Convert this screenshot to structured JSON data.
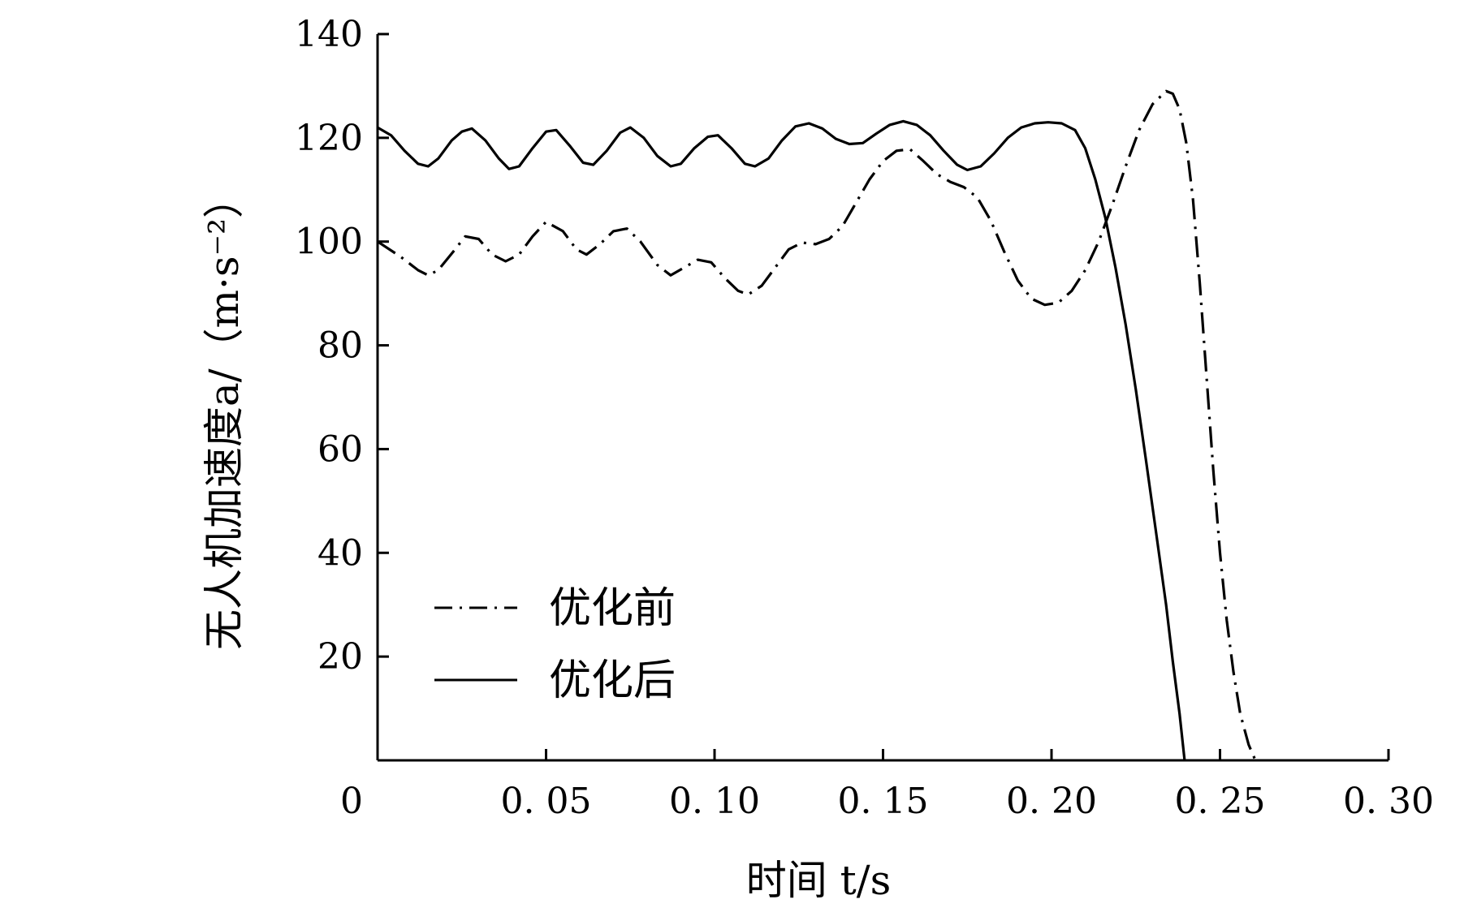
{
  "chart_data": {
    "type": "line",
    "title": "",
    "xlabel": "时间 t/s",
    "ylabel": "无人机加速度a/（m·s⁻²）",
    "xlim": [
      0,
      0.3
    ],
    "ylim": [
      0,
      140
    ],
    "x_ticks": [
      0,
      0.05,
      0.1,
      0.15,
      0.2,
      0.25,
      0.3
    ],
    "x_tick_labels": [
      "0",
      "0. 05",
      "0. 10",
      "0. 15",
      "0. 20",
      "0. 25",
      "0. 30"
    ],
    "y_ticks": [
      20,
      40,
      60,
      80,
      100,
      120,
      140
    ],
    "y_tick_labels": [
      "20",
      "40",
      "60",
      "80",
      "100",
      "120",
      "140"
    ],
    "grid": false,
    "legend_position": "bottom-left",
    "series": [
      {
        "name": "优化前",
        "line_style": "dash-dot",
        "color": "#000000",
        "points": [
          [
            0.0,
            100
          ],
          [
            0.007,
            97
          ],
          [
            0.012,
            94.5
          ],
          [
            0.015,
            93.5
          ],
          [
            0.018,
            94.5
          ],
          [
            0.023,
            98.5
          ],
          [
            0.026,
            101
          ],
          [
            0.03,
            100.5
          ],
          [
            0.034,
            97.5
          ],
          [
            0.038,
            96.2
          ],
          [
            0.042,
            97.5
          ],
          [
            0.046,
            101
          ],
          [
            0.05,
            103.8
          ],
          [
            0.055,
            102
          ],
          [
            0.059,
            98.5
          ],
          [
            0.062,
            97.5
          ],
          [
            0.066,
            99.5
          ],
          [
            0.07,
            102
          ],
          [
            0.074,
            102.5
          ],
          [
            0.078,
            100
          ],
          [
            0.083,
            95.5
          ],
          [
            0.087,
            93.5
          ],
          [
            0.091,
            95
          ],
          [
            0.095,
            96.5
          ],
          [
            0.099,
            96
          ],
          [
            0.103,
            93
          ],
          [
            0.107,
            90.5
          ],
          [
            0.11,
            89.8
          ],
          [
            0.114,
            91.5
          ],
          [
            0.118,
            95
          ],
          [
            0.122,
            98.5
          ],
          [
            0.126,
            99.8
          ],
          [
            0.13,
            99.5
          ],
          [
            0.134,
            100.5
          ],
          [
            0.138,
            103
          ],
          [
            0.142,
            107.5
          ],
          [
            0.146,
            112
          ],
          [
            0.15,
            115.5
          ],
          [
            0.154,
            117.5
          ],
          [
            0.158,
            117.8
          ],
          [
            0.162,
            115.5
          ],
          [
            0.166,
            113
          ],
          [
            0.17,
            111.5
          ],
          [
            0.174,
            110.5
          ],
          [
            0.178,
            108.5
          ],
          [
            0.182,
            104
          ],
          [
            0.186,
            98
          ],
          [
            0.19,
            92.5
          ],
          [
            0.194,
            89
          ],
          [
            0.198,
            87.8
          ],
          [
            0.202,
            88.2
          ],
          [
            0.206,
            90.5
          ],
          [
            0.21,
            94.5
          ],
          [
            0.214,
            100
          ],
          [
            0.218,
            107
          ],
          [
            0.222,
            114.5
          ],
          [
            0.226,
            121.5
          ],
          [
            0.23,
            126.5
          ],
          [
            0.234,
            129
          ],
          [
            0.236,
            128.5
          ],
          [
            0.238,
            125.5
          ],
          [
            0.24,
            119
          ],
          [
            0.242,
            108
          ],
          [
            0.244,
            92
          ],
          [
            0.246,
            74
          ],
          [
            0.248,
            56
          ],
          [
            0.25,
            40
          ],
          [
            0.252,
            27
          ],
          [
            0.254,
            17
          ],
          [
            0.256,
            9
          ],
          [
            0.2585,
            3
          ],
          [
            0.2605,
            0
          ]
        ]
      },
      {
        "name": "优化后",
        "line_style": "solid",
        "color": "#000000",
        "points": [
          [
            0.0,
            122
          ],
          [
            0.004,
            120.5
          ],
          [
            0.008,
            117.5
          ],
          [
            0.012,
            115
          ],
          [
            0.015,
            114.5
          ],
          [
            0.018,
            116
          ],
          [
            0.022,
            119.5
          ],
          [
            0.025,
            121.2
          ],
          [
            0.028,
            121.8
          ],
          [
            0.032,
            119.5
          ],
          [
            0.036,
            116
          ],
          [
            0.039,
            114
          ],
          [
            0.042,
            114.5
          ],
          [
            0.046,
            118
          ],
          [
            0.05,
            121.2
          ],
          [
            0.053,
            121.5
          ],
          [
            0.057,
            118.5
          ],
          [
            0.061,
            115.2
          ],
          [
            0.064,
            114.8
          ],
          [
            0.068,
            117.5
          ],
          [
            0.072,
            121
          ],
          [
            0.075,
            122
          ],
          [
            0.079,
            120
          ],
          [
            0.083,
            116.5
          ],
          [
            0.087,
            114.5
          ],
          [
            0.09,
            115
          ],
          [
            0.094,
            118
          ],
          [
            0.098,
            120.2
          ],
          [
            0.101,
            120.5
          ],
          [
            0.105,
            118
          ],
          [
            0.109,
            115
          ],
          [
            0.112,
            114.5
          ],
          [
            0.116,
            116
          ],
          [
            0.12,
            119.5
          ],
          [
            0.124,
            122.2
          ],
          [
            0.128,
            122.8
          ],
          [
            0.132,
            121.8
          ],
          [
            0.136,
            119.8
          ],
          [
            0.14,
            118.8
          ],
          [
            0.144,
            119
          ],
          [
            0.148,
            120.8
          ],
          [
            0.152,
            122.5
          ],
          [
            0.156,
            123.2
          ],
          [
            0.16,
            122.5
          ],
          [
            0.164,
            120.5
          ],
          [
            0.168,
            117.5
          ],
          [
            0.172,
            114.8
          ],
          [
            0.175,
            113.8
          ],
          [
            0.179,
            114.5
          ],
          [
            0.183,
            117
          ],
          [
            0.187,
            120
          ],
          [
            0.191,
            122
          ],
          [
            0.195,
            122.8
          ],
          [
            0.199,
            123
          ],
          [
            0.203,
            122.8
          ],
          [
            0.207,
            121.5
          ],
          [
            0.21,
            118
          ],
          [
            0.213,
            112
          ],
          [
            0.216,
            104.5
          ],
          [
            0.219,
            95
          ],
          [
            0.222,
            84
          ],
          [
            0.225,
            71.5
          ],
          [
            0.228,
            58
          ],
          [
            0.231,
            44
          ],
          [
            0.234,
            30
          ],
          [
            0.236,
            19
          ],
          [
            0.238,
            9
          ],
          [
            0.2395,
            0
          ]
        ]
      }
    ]
  }
}
